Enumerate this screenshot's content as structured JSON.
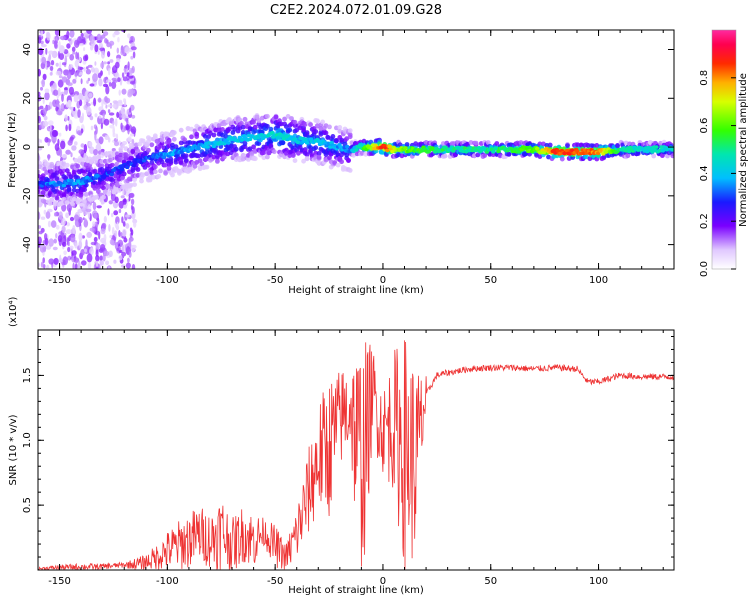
{
  "figure_title": "C2E2.2024.072.01.09.G28",
  "colors": {
    "snr_line": "#ee3333",
    "axis": "#000000"
  },
  "chart_data": [
    {
      "type": "heatmap",
      "title": "C2E2.2024.072.01.09.G28",
      "xlabel": "Height of straight line (km)",
      "ylabel": "Frequency (Hz)",
      "xlim": [
        -160,
        135
      ],
      "ylim": [
        -50,
        48
      ],
      "xticks": [
        -150,
        -100,
        -50,
        0,
        50,
        100
      ],
      "yticks": [
        -40,
        -20,
        0,
        20,
        40
      ],
      "colorbar": {
        "label": "Normalized spectral amplitude",
        "range": [
          0.0,
          1.0
        ],
        "ticks": [
          "0.0",
          "0.2",
          "0.4",
          "0.6",
          "0.8"
        ],
        "colormap": "rainbow (white-violet-blue-cyan-green-yellow-red-magenta)"
      },
      "ridge": {
        "x": [
          -160,
          -150,
          -140,
          -130,
          -120,
          -110,
          -100,
          -90,
          -80,
          -70,
          -60,
          -50,
          -45,
          -40,
          -30,
          -20,
          -15,
          -10,
          0,
          5,
          10,
          20,
          30,
          50,
          70,
          80,
          90,
          100,
          110,
          120,
          135
        ],
        "freq": [
          -15,
          -15,
          -14,
          -12,
          -8,
          -5,
          -3,
          -1,
          1,
          3,
          4,
          5,
          4,
          3,
          2,
          0,
          -1,
          0,
          0,
          -1,
          -1,
          -1,
          -1,
          -1,
          -1,
          -2,
          -2,
          -2,
          -1,
          -1,
          -1
        ],
        "amplitude": [
          0.3,
          0.35,
          0.35,
          0.3,
          0.3,
          0.3,
          0.35,
          0.35,
          0.4,
          0.4,
          0.4,
          0.45,
          0.45,
          0.4,
          0.4,
          0.35,
          0.35,
          0.5,
          0.9,
          0.7,
          0.6,
          0.55,
          0.5,
          0.5,
          0.6,
          0.85,
          0.85,
          0.8,
          0.5,
          0.45,
          0.45
        ]
      }
    },
    {
      "type": "line",
      "xlabel": "Height of straight line (km)",
      "ylabel": "SNR (10 * v/v)",
      "y_multiplier_label": "(x10⁴)",
      "xlim": [
        -160,
        135
      ],
      "ylim": [
        0.0,
        1.85
      ],
      "xticks": [
        -150,
        -100,
        -50,
        0,
        50,
        100
      ],
      "yticks": [
        "0.5",
        "1.0",
        "1.5"
      ],
      "series": [
        {
          "x": [
            -160,
            -150,
            -140,
            -130,
            -120,
            -110,
            -105,
            -100,
            -95,
            -90,
            -85,
            -80,
            -75,
            -70,
            -65,
            -60,
            -55,
            -50,
            -45,
            -40,
            -35,
            -30,
            -25,
            -20,
            -15,
            -10,
            -5,
            0,
            5,
            10,
            15,
            20,
            25,
            30,
            40,
            50,
            60,
            70,
            80,
            90,
            95,
            100,
            110,
            120,
            135
          ],
          "y": [
            0.01,
            0.02,
            0.02,
            0.03,
            0.04,
            0.06,
            0.1,
            0.15,
            0.2,
            0.25,
            0.3,
            0.25,
            0.28,
            0.2,
            0.3,
            0.25,
            0.3,
            0.2,
            0.1,
            0.3,
            0.6,
            0.9,
            1.0,
            1.2,
            1.3,
            0.8,
            1.4,
            1.1,
            1.2,
            1.0,
            0.9,
            1.35,
            1.5,
            1.52,
            1.55,
            1.56,
            1.56,
            1.55,
            1.56,
            1.55,
            1.45,
            1.45,
            1.5,
            1.49,
            1.49
          ],
          "envelope": [
            0.02,
            0.04,
            0.05,
            0.05,
            0.06,
            0.12,
            0.2,
            0.3,
            0.38,
            0.45,
            0.5,
            0.45,
            0.6,
            0.4,
            0.5,
            0.45,
            0.4,
            0.35,
            0.2,
            0.5,
            0.9,
            1.3,
            1.5,
            1.55,
            1.65,
            1.8,
            1.75,
            1.4,
            1.7,
            1.85,
            1.6,
            1.5,
            1.55,
            1.57,
            1.58,
            1.6,
            1.6,
            1.58,
            1.6,
            1.6,
            1.6,
            1.55,
            1.53,
            1.52,
            1.52
          ]
        }
      ]
    }
  ]
}
